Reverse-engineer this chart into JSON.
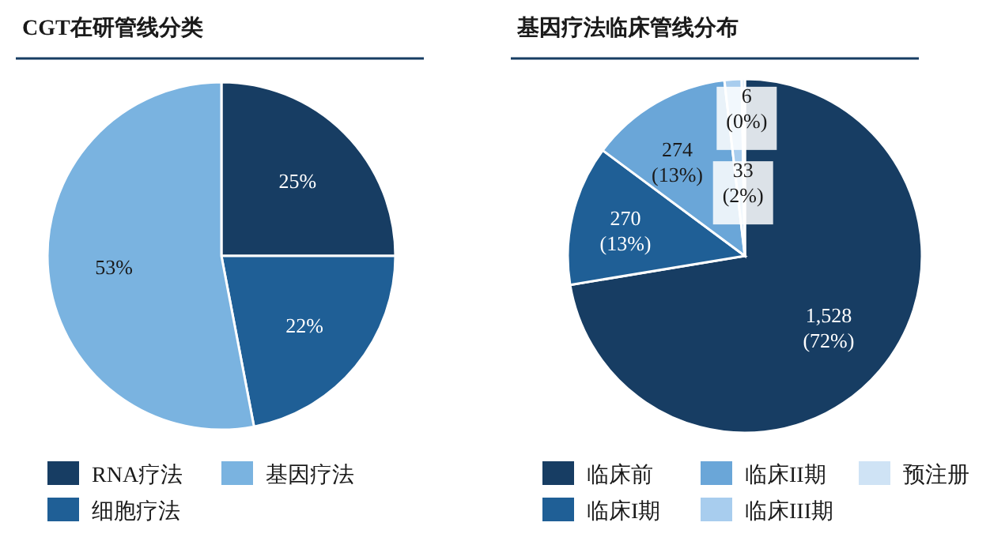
{
  "chart_data": [
    {
      "type": "pie",
      "title": "CGT在研管线分类",
      "categories": [
        "RNA疗法",
        "细胞疗法",
        "基因疗法"
      ],
      "values": [
        25,
        22,
        53
      ],
      "colors": [
        "#173d63",
        "#1f5f96",
        "#7ab3e0"
      ],
      "value_labels": [
        "25%",
        "22%",
        "53%"
      ],
      "legend": "bottom"
    },
    {
      "type": "pie",
      "title": "基因疗法临床管线分布",
      "categories": [
        "临床前",
        "临床I期",
        "临床II期",
        "临床III期",
        "预注册"
      ],
      "values": [
        1528,
        270,
        274,
        33,
        6
      ],
      "colors": [
        "#173d63",
        "#1f5f96",
        "#6aa6d8",
        "#a8cdee",
        "#cfe3f5"
      ],
      "value_labels": [
        "1,528 (72%)",
        "270 (13%)",
        "274 (13%)",
        "33 (2%)",
        "6 (0%)"
      ],
      "legend": "bottom"
    }
  ]
}
